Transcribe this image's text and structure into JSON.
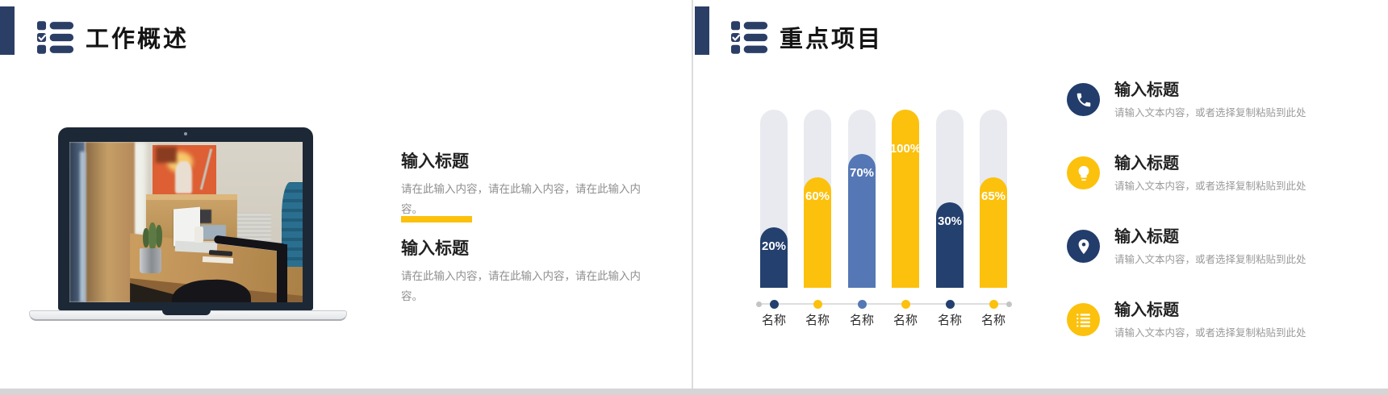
{
  "page": {
    "background": "#ffffff",
    "footer_strip_color": "#d5d5d5",
    "divider_color": "#dcdcdc",
    "navy": "#2b3e66",
    "yellow": "#fcc10d"
  },
  "left_slide": {
    "header": {
      "title": "工作概述",
      "icon": "checklist-icon",
      "accent_color": "#2b3e66"
    },
    "image": {
      "description": "laptop-office-photo"
    },
    "divider_color": "#fcc10d",
    "sections": [
      {
        "title": "输入标题",
        "body": "请在此输入内容，请在此输入内容，请在此输入内容。"
      },
      {
        "title": "输入标题",
        "body": "请在此输入内容，请在此输入内容，请在此输入内容。"
      }
    ]
  },
  "right_slide": {
    "header": {
      "title": "重点项目",
      "icon": "checklist-icon",
      "accent_color": "#2b3e66"
    },
    "items": [
      {
        "icon": "phone-icon",
        "accent": "#223d6b",
        "title": "输入标题",
        "desc": "请输入文本内容，或者选择复制粘贴到此处"
      },
      {
        "icon": "lightbulb-icon",
        "accent": "#fcc10d",
        "title": "输入标题",
        "desc": "请输入文本内容，或者选择复制粘贴到此处"
      },
      {
        "icon": "location-pin-icon",
        "accent": "#223d6b",
        "title": "输入标题",
        "desc": "请输入文本内容，或者选择复制粘贴到此处"
      },
      {
        "icon": "list-icon",
        "accent": "#fcc10d",
        "title": "输入标题",
        "desc": "请输入文本内容，或者选择复制粘贴到此处"
      }
    ]
  },
  "chart_data": {
    "type": "bar",
    "title": "",
    "categories": [
      "名称",
      "名称",
      "名称",
      "名称",
      "名称",
      "名称"
    ],
    "values": [
      20,
      60,
      70,
      100,
      30,
      65
    ],
    "value_labels": [
      "20%",
      "60%",
      "70%",
      "100%",
      "30%",
      "65%"
    ],
    "colors": [
      "#24406e",
      "#fcc10d",
      "#5577b5",
      "#fcc10d",
      "#24406e",
      "#fcc10d"
    ],
    "visual_fill_pct": [
      34,
      62,
      75,
      100,
      48,
      62
    ],
    "track_color": "#e8eaf0",
    "value_label_color": "#ffffff",
    "axis_line_color": "#dedede",
    "end_dot_color": "#c4c4c4",
    "ylim": [
      0,
      100
    ],
    "grid": false,
    "legend": "none"
  }
}
